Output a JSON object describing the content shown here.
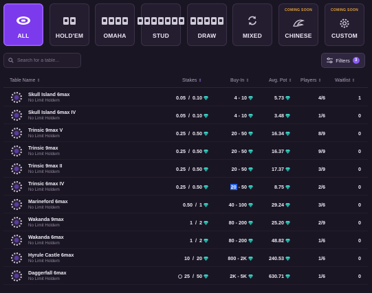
{
  "categories": [
    {
      "label": "ALL",
      "icon": "poker-table-icon",
      "active": true,
      "coming_soon": ""
    },
    {
      "label": "HOLD'EM",
      "icon": "two-cards-icon",
      "active": false,
      "coming_soon": ""
    },
    {
      "label": "OMAHA",
      "icon": "four-cards-icon",
      "active": false,
      "coming_soon": ""
    },
    {
      "label": "STUD",
      "icon": "seven-cards-icon",
      "active": false,
      "coming_soon": ""
    },
    {
      "label": "DRAW",
      "icon": "five-cards-icon",
      "active": false,
      "coming_soon": ""
    },
    {
      "label": "MIXED",
      "icon": "refresh-icon",
      "active": false,
      "coming_soon": ""
    },
    {
      "label": "CHINESE",
      "icon": "dragon-icon",
      "active": false,
      "coming_soon": "COMING SOON"
    },
    {
      "label": "CUSTOM",
      "icon": "gear-icon",
      "active": false,
      "coming_soon": "COMING SOON"
    }
  ],
  "search": {
    "placeholder": "Search for a table..."
  },
  "filters": {
    "label": "Filters",
    "count": "3"
  },
  "table": {
    "columns": {
      "name": "Table Name",
      "stakes": "Stakes",
      "buyin": "Buy-In",
      "avgpot": "Avg. Pot",
      "players": "Players",
      "waitlist": "Waitlist"
    },
    "rows": [
      {
        "name": "Skull Island 6max",
        "game": "No Limit Holdem",
        "stakes_small": "0.05",
        "stakes_big": "0.10",
        "buyin_min": "4",
        "buyin_max": "10",
        "avg_pot": "5.73",
        "players": "4/6",
        "waitlist": "1",
        "timer": false
      },
      {
        "name": "Skull Island 6max IV",
        "game": "No Limit Holdem",
        "stakes_small": "0.05",
        "stakes_big": "0.10",
        "buyin_min": "4",
        "buyin_max": "10",
        "avg_pot": "3.48",
        "players": "1/6",
        "waitlist": "0",
        "timer": false
      },
      {
        "name": "Trinsic 9max V",
        "game": "No Limit Holdem",
        "stakes_small": "0.25",
        "stakes_big": "0.50",
        "buyin_min": "20",
        "buyin_max": "50",
        "avg_pot": "16.34",
        "players": "8/9",
        "waitlist": "0",
        "timer": false
      },
      {
        "name": "Trinsic 9max",
        "game": "No Limit Holdem",
        "stakes_small": "0.25",
        "stakes_big": "0.50",
        "buyin_min": "20",
        "buyin_max": "50",
        "avg_pot": "16.37",
        "players": "9/9",
        "waitlist": "0",
        "timer": false
      },
      {
        "name": "Trinsic 9max II",
        "game": "No Limit Holdem",
        "stakes_small": "0.25",
        "stakes_big": "0.50",
        "buyin_min": "20",
        "buyin_max": "50",
        "avg_pot": "17.37",
        "players": "3/9",
        "waitlist": "0",
        "timer": false
      },
      {
        "name": "Trinsic 6max IV",
        "game": "No Limit Holdem",
        "stakes_small": "0.25",
        "stakes_big": "0.50",
        "buyin_min": "20",
        "buyin_max": "50",
        "avg_pot": "8.75",
        "players": "2/6",
        "waitlist": "0",
        "timer": false
      },
      {
        "name": "Marineford 6max",
        "game": "No Limit Holdem",
        "stakes_small": "0.50",
        "stakes_big": "1",
        "buyin_min": "40",
        "buyin_max": "100",
        "avg_pot": "29.24",
        "players": "3/6",
        "waitlist": "0",
        "timer": false
      },
      {
        "name": "Wakanda 9max",
        "game": "No Limit Holdem",
        "stakes_small": "1",
        "stakes_big": "2",
        "buyin_min": "80",
        "buyin_max": "200",
        "avg_pot": "25.20",
        "players": "2/9",
        "waitlist": "0",
        "timer": false
      },
      {
        "name": "Wakanda 6max",
        "game": "No Limit Holdem",
        "stakes_small": "1",
        "stakes_big": "2",
        "buyin_min": "80",
        "buyin_max": "200",
        "avg_pot": "48.82",
        "players": "1/6",
        "waitlist": "0",
        "timer": false
      },
      {
        "name": "Hyrule Castle 6max",
        "game": "No Limit Holdem",
        "stakes_small": "10",
        "stakes_big": "20",
        "buyin_min": "800",
        "buyin_max": "2K",
        "avg_pot": "240.53",
        "players": "1/6",
        "waitlist": "0",
        "timer": false
      },
      {
        "name": "Daggerfall 6max",
        "game": "No Limit Holdem",
        "stakes_small": "25",
        "stakes_big": "50",
        "buyin_min": "2K",
        "buyin_max": "5K",
        "avg_pot": "630.71",
        "players": "1/6",
        "waitlist": "0",
        "timer": true
      }
    ]
  },
  "colors": {
    "accent": "#7c3aed",
    "gem": "#3fd6c9",
    "coming_soon": "#e0a23a",
    "background": "#1a1523"
  }
}
